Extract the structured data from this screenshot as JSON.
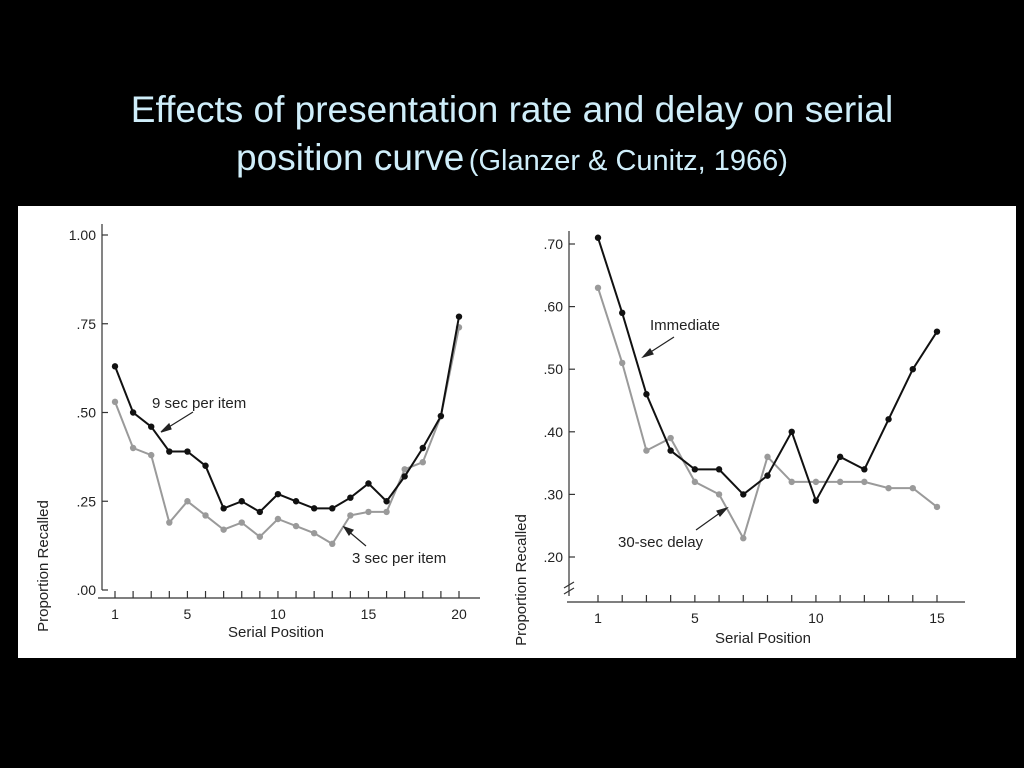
{
  "title": {
    "line1": "Effects of presentation rate and delay on serial",
    "line2": "position curve",
    "citation": "(Glanzer & Cunitz, 1966)"
  },
  "colors": {
    "background": "#000000",
    "title": "#cfeefa",
    "series_dark": "#111111",
    "series_light": "#9a9a9a"
  },
  "chart_data": [
    {
      "type": "line",
      "title": "",
      "xlabel": "Serial Position",
      "ylabel": "Proportion Recalled",
      "xlim": [
        1,
        20
      ],
      "ylim": [
        0,
        1
      ],
      "xticks": [
        1,
        5,
        10,
        15,
        20
      ],
      "yticks": [
        ".00",
        ".25",
        ".50",
        ".75",
        "1.00"
      ],
      "ytick_values": [
        0,
        0.25,
        0.5,
        0.75,
        1.0
      ],
      "grid": false,
      "series": [
        {
          "name": "9 sec per item",
          "x": [
            1,
            2,
            3,
            4,
            5,
            6,
            7,
            8,
            9,
            10,
            11,
            12,
            13,
            14,
            15,
            16,
            17,
            18,
            19,
            20
          ],
          "y": [
            0.63,
            0.5,
            0.46,
            0.39,
            0.39,
            0.35,
            0.23,
            0.25,
            0.22,
            0.27,
            0.25,
            0.23,
            0.23,
            0.26,
            0.3,
            0.25,
            0.32,
            0.4,
            0.49,
            0.77
          ]
        },
        {
          "name": "3 sec per item",
          "x": [
            1,
            2,
            3,
            4,
            5,
            6,
            7,
            8,
            9,
            10,
            11,
            12,
            13,
            14,
            15,
            16,
            17,
            18,
            19,
            20
          ],
          "y": [
            0.53,
            0.4,
            0.38,
            0.19,
            0.25,
            0.21,
            0.17,
            0.19,
            0.15,
            0.2,
            0.18,
            0.16,
            0.13,
            0.21,
            0.22,
            0.22,
            0.34,
            0.36,
            0.49,
            0.74
          ]
        }
      ],
      "annotations": [
        "9 sec per item",
        "3 sec per item"
      ]
    },
    {
      "type": "line",
      "title": "",
      "xlabel": "Serial Position",
      "ylabel": "Proportion Recalled",
      "xlim": [
        1,
        15
      ],
      "ylim": [
        0.2,
        0.7
      ],
      "xticks": [
        1,
        5,
        10,
        15
      ],
      "yticks": [
        ".20",
        ".30",
        ".40",
        ".50",
        ".60",
        ".70"
      ],
      "ytick_values": [
        0.2,
        0.3,
        0.4,
        0.5,
        0.6,
        0.7
      ],
      "axis_break": true,
      "grid": false,
      "series": [
        {
          "name": "Immediate",
          "x": [
            1,
            2,
            3,
            4,
            5,
            6,
            7,
            8,
            9,
            10,
            11,
            12,
            13,
            14,
            15
          ],
          "y": [
            0.71,
            0.59,
            0.46,
            0.37,
            0.34,
            0.34,
            0.3,
            0.33,
            0.4,
            0.29,
            0.36,
            0.34,
            0.42,
            0.5,
            0.56
          ]
        },
        {
          "name": "30-sec delay",
          "x": [
            1,
            2,
            3,
            4,
            5,
            6,
            7,
            8,
            9,
            10,
            11,
            12,
            13,
            14,
            15
          ],
          "y": [
            0.63,
            0.51,
            0.37,
            0.39,
            0.32,
            0.3,
            0.23,
            0.36,
            0.32,
            0.32,
            0.32,
            0.32,
            0.31,
            0.31,
            0.28
          ]
        }
      ],
      "annotations": [
        "Immediate",
        "30-sec delay"
      ]
    }
  ]
}
